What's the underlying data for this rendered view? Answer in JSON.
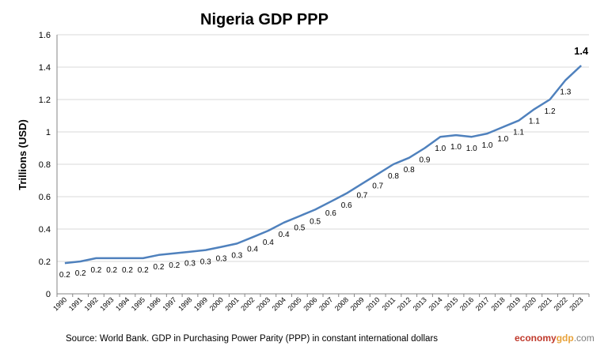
{
  "chart_data": {
    "type": "line",
    "title": "Nigeria GDP PPP",
    "xlabel": "",
    "ylabel": "Trillions (USD)",
    "ylim": [
      0,
      1.6
    ],
    "yticks": [
      "0",
      "0.2",
      "0.4",
      "0.6",
      "0.8",
      "1",
      "1.2",
      "1.4",
      "1.6"
    ],
    "grid": "horizontal",
    "line_color": "#4f81bd",
    "x": [
      "1990",
      "1991",
      "1992",
      "1993",
      "1994",
      "1995",
      "1996",
      "1997",
      "1998",
      "1999",
      "2000",
      "2001",
      "2002",
      "2003",
      "2004",
      "2005",
      "2006",
      "2007",
      "2008",
      "2009",
      "2010",
      "2011",
      "2012",
      "2013",
      "2014",
      "2015",
      "2016",
      "2017",
      "2018",
      "2019",
      "2020",
      "2021",
      "2022",
      "2023"
    ],
    "series": [
      {
        "values": [
          0.19,
          0.2,
          0.22,
          0.22,
          0.22,
          0.22,
          0.24,
          0.25,
          0.26,
          0.27,
          0.29,
          0.31,
          0.35,
          0.39,
          0.44,
          0.48,
          0.52,
          0.57,
          0.62,
          0.68,
          0.74,
          0.8,
          0.84,
          0.9,
          0.97,
          0.98,
          0.97,
          0.99,
          1.03,
          1.07,
          1.14,
          1.2,
          1.32,
          1.41
        ],
        "labels": [
          "0.2",
          "0.2",
          "0.2",
          "0.2",
          "0.2",
          "0.2",
          "0.2",
          "0.2",
          "0.3",
          "0.3",
          "0.3",
          "0.3",
          "0.4",
          "0.4",
          "0.4",
          "0.5",
          "0.5",
          "0.6",
          "0.6",
          "0.7",
          "0.7",
          "0.8",
          "0.8",
          "0.9",
          "1.0",
          "1.0",
          "1.0",
          "1.0",
          "1.0",
          "1.1",
          "1.1",
          "1.2",
          "1.3",
          "1.4"
        ]
      }
    ]
  },
  "footer": {
    "source": "Source:  World Bank.  GDP  in  Purchasing Power Parity (PPP)  in constant international dollars",
    "brand_part1": "economy",
    "brand_part2": "gdp",
    "brand_part3": ".com"
  }
}
